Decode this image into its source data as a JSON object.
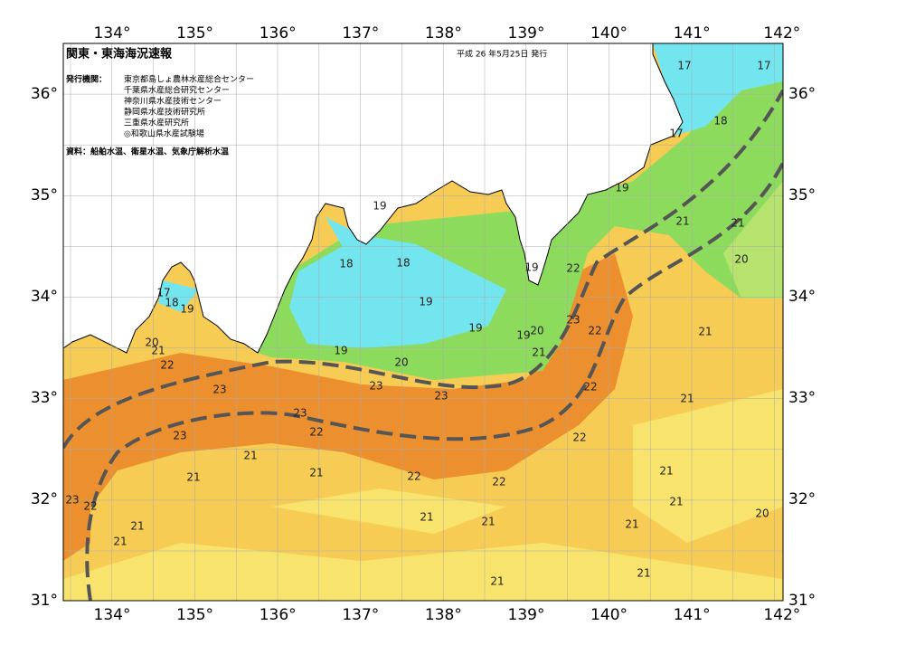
{
  "header": {
    "title": "関東・東海海況速報",
    "date": "平成 26 年5月25日 発行"
  },
  "issuers": {
    "label": "発行機関：",
    "names": [
      "東京都島しょ農林水産総合センター",
      "千葉県水産総合研究センター",
      "神奈川県水産技術センター",
      "静岡県水産技術研究所",
      "三重県水産研究所",
      "◎和歌山県水産試験場"
    ]
  },
  "source": "資料：船舶水温、衛星水温、気象庁解析水温",
  "longitude_labels": [
    "134°",
    "135°",
    "136°",
    "137°",
    "138°",
    "139°",
    "140°",
    "141°",
    "142°"
  ],
  "latitude_labels": [
    "36°",
    "35°",
    "34°",
    "33°",
    "32°",
    "31°"
  ],
  "contour_labels": [
    17,
    17,
    18,
    17,
    19,
    21,
    21,
    20,
    19,
    18,
    18,
    19,
    22,
    17,
    18,
    19,
    19,
    23,
    22,
    19,
    19,
    20,
    21,
    20,
    21,
    19,
    21,
    22,
    20,
    23,
    23,
    23,
    22,
    21,
    23,
    22,
    23,
    22,
    21,
    21,
    22,
    22,
    21,
    21,
    23,
    22,
    21,
    20,
    21,
    21,
    21,
    21,
    21,
    21,
    21
  ]
}
